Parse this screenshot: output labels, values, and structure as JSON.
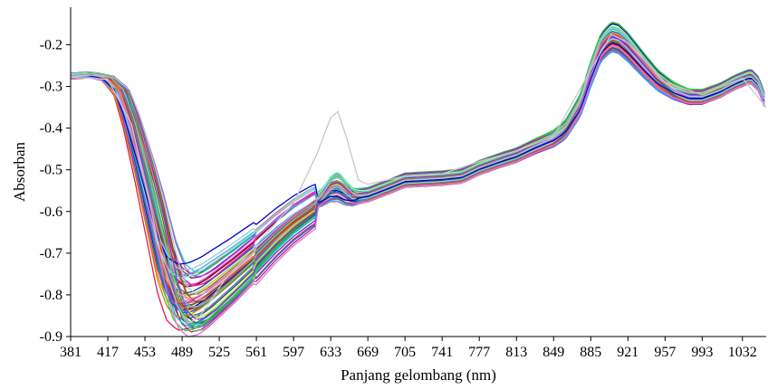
{
  "chart_data": {
    "type": "line",
    "title": "",
    "xlabel": "Panjang gelombang (nm)",
    "ylabel": "Absorban",
    "xlim": [
      381,
      1055
    ],
    "ylim": [
      -0.9,
      -0.11
    ],
    "x_ticks": [
      381,
      417,
      453,
      489,
      525,
      561,
      597,
      633,
      669,
      705,
      741,
      777,
      813,
      849,
      885,
      921,
      957,
      993,
      1032
    ],
    "y_ticks": [
      -0.9,
      -0.8,
      -0.7,
      -0.6,
      -0.5,
      -0.4,
      -0.3,
      -0.2
    ],
    "y_tick_labels": [
      "-0.9",
      "-0.8",
      "-0.7",
      "-0.6",
      "-0.5",
      "-0.4",
      "-0.3",
      "-0.2"
    ],
    "grid": false,
    "legend": "none",
    "base_profile": {
      "x": [
        381,
        400,
        417,
        430,
        440,
        453,
        465,
        475,
        485,
        495,
        505,
        515,
        525,
        540,
        561,
        580,
        597,
        615,
        625,
        633,
        640,
        648,
        655,
        669,
        690,
        705,
        741,
        760,
        777,
        800,
        813,
        830,
        849,
        860,
        875,
        885,
        895,
        905,
        912,
        921,
        935,
        950,
        965,
        980,
        993,
        1010,
        1025,
        1040,
        1048,
        1055
      ],
      "y": [
        -0.275,
        -0.272,
        -0.28,
        -0.31,
        -0.38,
        -0.5,
        -0.62,
        -0.72,
        -0.785,
        -0.805,
        -0.8,
        -0.785,
        -0.765,
        -0.735,
        -0.69,
        -0.645,
        -0.61,
        -0.58,
        -0.565,
        -0.545,
        -0.54,
        -0.555,
        -0.565,
        -0.56,
        -0.54,
        -0.525,
        -0.52,
        -0.515,
        -0.495,
        -0.475,
        -0.465,
        -0.445,
        -0.425,
        -0.405,
        -0.345,
        -0.27,
        -0.205,
        -0.18,
        -0.185,
        -0.205,
        -0.245,
        -0.285,
        -0.31,
        -0.325,
        -0.325,
        -0.31,
        -0.29,
        -0.275,
        -0.295,
        -0.345
      ]
    },
    "series_count": 56,
    "series_colors": [
      "#e6194b",
      "#3cb44b",
      "#4363d8",
      "#f58231",
      "#911eb4",
      "#46f0f0",
      "#f032e6",
      "#9acd32",
      "#008080",
      "#9a6324",
      "#800000",
      "#1f3a93",
      "#ff69b4",
      "#2e8b57",
      "#4682b4",
      "#d2691e",
      "#6a5acd",
      "#20b2aa",
      "#b22222",
      "#228b22",
      "#1e90ff",
      "#ff8c00",
      "#8b008b",
      "#00ced1",
      "#c71585",
      "#556b2f",
      "#483d8b",
      "#e9967a",
      "#00008b",
      "#8fbc8f",
      "#dc143c",
      "#00bfff",
      "#ff1493",
      "#32cd32",
      "#ba55d3",
      "#4169e1",
      "#cd5c5c",
      "#2f4f4f",
      "#ff6347",
      "#7b68ee",
      "#3cb371",
      "#b8860b",
      "#6495ed",
      "#9932cc",
      "#008b8b",
      "#ff4500",
      "#7fffd4",
      "#a0522d",
      "#87ceeb",
      "#da70d6",
      "#0000cd",
      "#adff2f",
      "#8a2be2",
      "#f08080",
      "#66cdaa",
      "#b0c4de"
    ],
    "outlier_series": {
      "color": "#c8c8c8",
      "x": [
        381,
        417,
        440,
        453,
        470,
        485,
        495,
        505,
        515,
        530,
        561,
        597,
        620,
        633,
        640,
        648,
        660,
        669,
        705,
        741,
        777,
        813,
        849,
        885,
        905,
        921,
        957,
        993,
        1032,
        1055
      ],
      "y": [
        -0.278,
        -0.283,
        -0.39,
        -0.53,
        -0.72,
        -0.83,
        -0.868,
        -0.855,
        -0.82,
        -0.765,
        -0.68,
        -0.58,
        -0.46,
        -0.375,
        -0.36,
        -0.42,
        -0.525,
        -0.535,
        -0.515,
        -0.51,
        -0.48,
        -0.455,
        -0.42,
        -0.26,
        -0.175,
        -0.195,
        -0.29,
        -0.32,
        -0.28,
        -0.35
      ]
    }
  }
}
